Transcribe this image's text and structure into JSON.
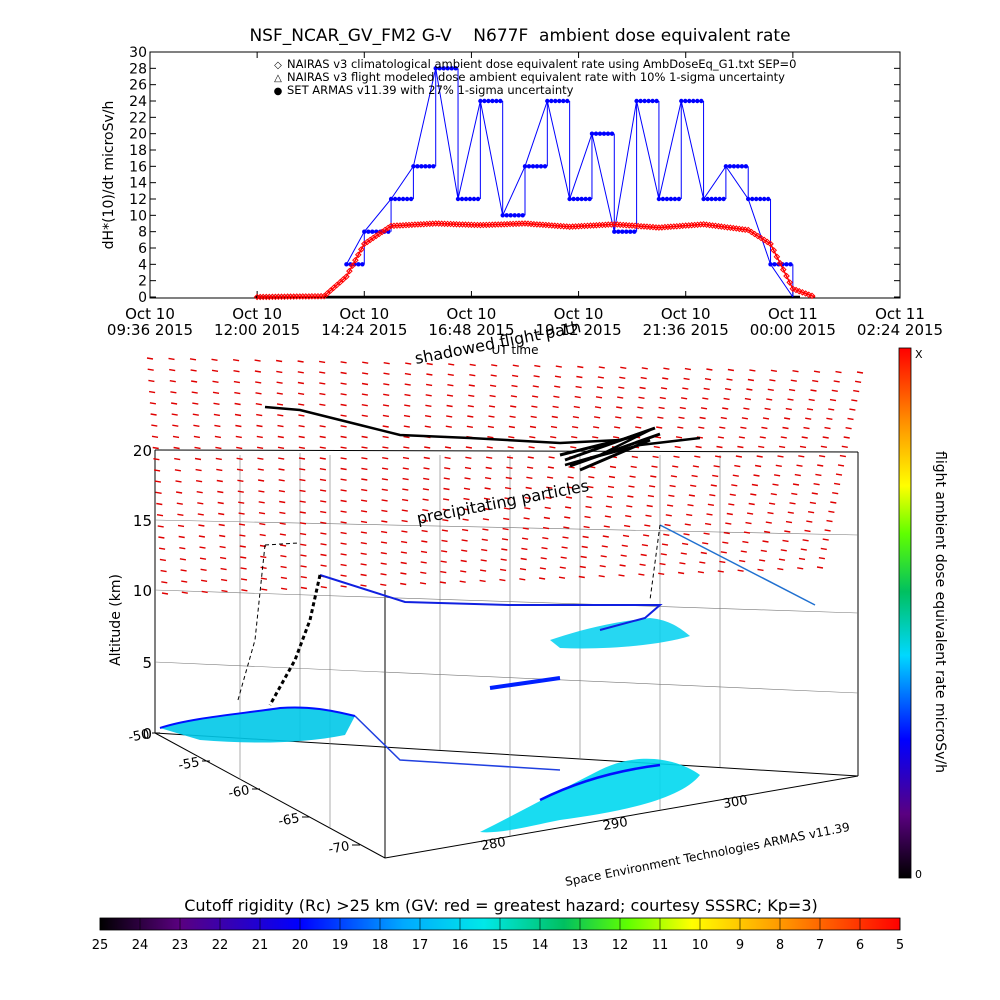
{
  "chart_data": [
    {
      "type": "line",
      "title": "NSF_NCAR_GV_FM2 G-V    N677F  ambient dose equivalent rate",
      "xlabel": "UT time",
      "ylabel": "dH*(10)/dt microSv/h",
      "ylim": [
        0,
        30
      ],
      "y_ticks": [
        0,
        2,
        4,
        6,
        8,
        10,
        12,
        14,
        16,
        18,
        20,
        22,
        24,
        26,
        28,
        30
      ],
      "x_ticks": [
        {
          "l1": "Oct 10",
          "l2": "09:36 2015"
        },
        {
          "l1": "Oct 10",
          "l2": "12:00 2015"
        },
        {
          "l1": "Oct 10",
          "l2": "14:24 2015"
        },
        {
          "l1": "Oct 10",
          "l2": "16:48 2015"
        },
        {
          "l1": "Oct 10",
          "l2": "19:12 2015"
        },
        {
          "l1": "Oct 10",
          "l2": "21:36 2015"
        },
        {
          "l1": "Oct 11",
          "l2": "00:00 2015"
        },
        {
          "l1": "Oct 11",
          "l2": "02:24 2015"
        }
      ],
      "legend_position": "top-right",
      "legend": [
        {
          "marker": "◇",
          "text": "NAIRAS v3 climatological ambient dose equivalent rate using AmbDoseEq_G1.txt SEP=0",
          "color": "#ff0000"
        },
        {
          "marker": "△",
          "text": "NAIRAS v3 flight modeled dose ambient equivalent rate with 10% 1-sigma uncertainty",
          "color": "#000000"
        },
        {
          "marker": "●",
          "text": "SET ARMAS v11.39 with 27% 1-sigma uncertainty",
          "color": "#0000ff"
        }
      ],
      "series": [
        {
          "name": "NAIRAS v3 climatological ambient dose equivalent rate using AmbDoseEq_G1.txt SEP=0",
          "color": "#ff0000",
          "x": [
            "Oct 10 12:00",
            "Oct 10 13:30",
            "Oct 10 14:00",
            "Oct 10 14:24",
            "Oct 10 15:00",
            "Oct 10 16:00",
            "Oct 10 17:00",
            "Oct 10 18:00",
            "Oct 10 19:00",
            "Oct 10 20:00",
            "Oct 10 21:00",
            "Oct 10 22:00",
            "Oct 10 23:00",
            "Oct 10 23:30",
            "Oct 11 00:00",
            "Oct 11 00:30"
          ],
          "y": [
            0,
            0.1,
            2.5,
            6.5,
            8.7,
            9.0,
            8.8,
            9.0,
            8.6,
            8.9,
            8.5,
            8.9,
            8.2,
            6.5,
            1.0,
            0
          ]
        },
        {
          "name": "SET ARMAS v11.39 with 27% 1-sigma uncertainty",
          "color": "#0000ff",
          "x": [
            "Oct 10 14:00",
            "Oct 10 14:24",
            "Oct 10 15:00",
            "Oct 10 15:30",
            "Oct 10 16:00",
            "Oct 10 16:30",
            "Oct 10 17:00",
            "Oct 10 17:30",
            "Oct 10 18:00",
            "Oct 10 18:30",
            "Oct 10 19:00",
            "Oct 10 19:30",
            "Oct 10 20:00",
            "Oct 10 20:30",
            "Oct 10 21:00",
            "Oct 10 21:30",
            "Oct 10 22:00",
            "Oct 10 22:30",
            "Oct 10 23:00",
            "Oct 10 23:30",
            "Oct 11 00:00"
          ],
          "y": [
            4,
            8,
            12,
            16,
            28,
            12,
            24,
            10,
            16,
            24,
            12,
            20,
            8,
            24,
            12,
            24,
            12,
            16,
            12,
            4,
            0
          ]
        }
      ]
    },
    {
      "type": "scatter",
      "title": "",
      "annotations": [
        "shadowed flight path",
        "precipitating particles",
        "Space Environment Technologies ARMAS v11.39"
      ],
      "zlabel": "Altitude (km)",
      "z_ticks": [
        0,
        5,
        10,
        15,
        20
      ],
      "lat_ticks": [
        -50,
        -55,
        -60,
        -65,
        -70
      ],
      "lon_ticks": [
        280,
        290,
        300
      ],
      "colorbar": {
        "label": "flight ambient dose equivalent rate microSv/h",
        "max_label": "X",
        "min_label": "0"
      }
    },
    {
      "type": "heatmap",
      "title": "Cutoff rigidity (Rc) >25 km (GV: red = greatest hazard; courtesy SSSRC; Kp=3)",
      "ticks": [
        25,
        24,
        23,
        22,
        21,
        20,
        19,
        18,
        17,
        16,
        15,
        14,
        13,
        12,
        11,
        10,
        9,
        8,
        7,
        6,
        5
      ]
    }
  ]
}
